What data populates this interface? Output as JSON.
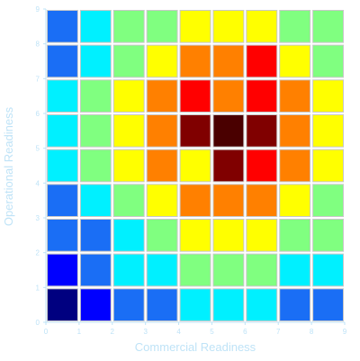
{
  "chart_data": {
    "type": "heatmap",
    "xlabel": "Commercial Readiness",
    "ylabel": "Operational Readiness",
    "xlim": [
      0,
      9
    ],
    "ylim": [
      0,
      9
    ],
    "x_ticks": [
      "0",
      "1",
      "2",
      "3",
      "4",
      "5",
      "6",
      "7",
      "8",
      "9"
    ],
    "y_ticks": [
      "0",
      "1",
      "2",
      "3",
      "4",
      "5",
      "6",
      "7",
      "8",
      "9"
    ],
    "grid": false,
    "cell_border_color": "#c8c8c8",
    "axis_color": "#bfe3f7",
    "rows_top_to_bottom": [
      [
        "#1a6ef5",
        "#00f0ff",
        "#80ff80",
        "#80ff80",
        "#ffff00",
        "#ffff00",
        "#ffff00",
        "#80ff80",
        "#80ff80"
      ],
      [
        "#1a6ef5",
        "#00f0ff",
        "#80ff80",
        "#ffff00",
        "#ff8000",
        "#ff8000",
        "#ff0000",
        "#ffff00",
        "#80ff80"
      ],
      [
        "#00f0ff",
        "#80ff80",
        "#ffff00",
        "#ff8000",
        "#ff0000",
        "#ff8000",
        "#ff0000",
        "#ff8000",
        "#ffff00"
      ],
      [
        "#00f0ff",
        "#80ff80",
        "#ffff00",
        "#ff8000",
        "#800000",
        "#4a0000",
        "#800000",
        "#ff8000",
        "#ffff00"
      ],
      [
        "#00f0ff",
        "#80ff80",
        "#ffff00",
        "#ff8000",
        "#ffff00",
        "#800000",
        "#ff0000",
        "#ff8000",
        "#ffff00"
      ],
      [
        "#1a6ef5",
        "#00f0ff",
        "#80ff80",
        "#ffff00",
        "#ff8000",
        "#ff8000",
        "#ff8000",
        "#ffff00",
        "#80ff80"
      ],
      [
        "#1a6ef5",
        "#1a6ef5",
        "#00f0ff",
        "#80ff80",
        "#ffff00",
        "#ffff00",
        "#ffff00",
        "#80ff80",
        "#80ff80"
      ],
      [
        "#0000ff",
        "#1a6ef5",
        "#00f0ff",
        "#00f0ff",
        "#80ff80",
        "#80ff80",
        "#80ff80",
        "#00f0ff",
        "#00f0ff"
      ],
      [
        "#000080",
        "#0000ff",
        "#1a6ef5",
        "#1a6ef5",
        "#00f0ff",
        "#00f0ff",
        "#00f0ff",
        "#1a6ef5",
        "#1a6ef5"
      ]
    ]
  }
}
